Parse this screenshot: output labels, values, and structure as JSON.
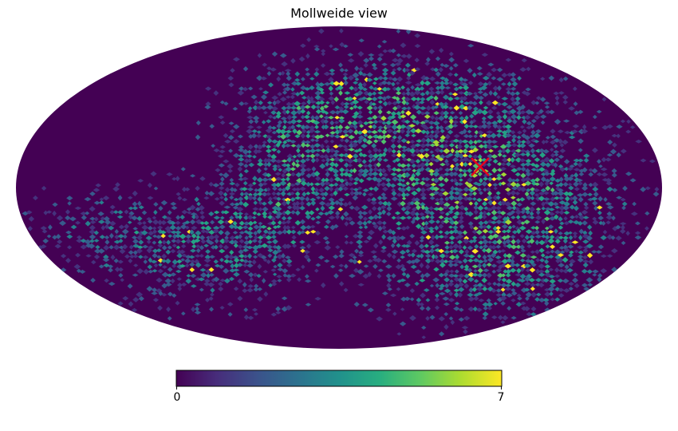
{
  "chart_data": {
    "type": "heatmap",
    "projection": "mollweide",
    "title": "Mollweide view",
    "colormap": "viridis",
    "colorbar": {
      "orientation": "horizontal",
      "placement": "bottom",
      "min": 0,
      "max": 7,
      "min_label": "0",
      "max_label": "7"
    },
    "background_value": 0,
    "marker": {
      "shape": "x",
      "color": "#e8001c"
    },
    "grid": false
  }
}
